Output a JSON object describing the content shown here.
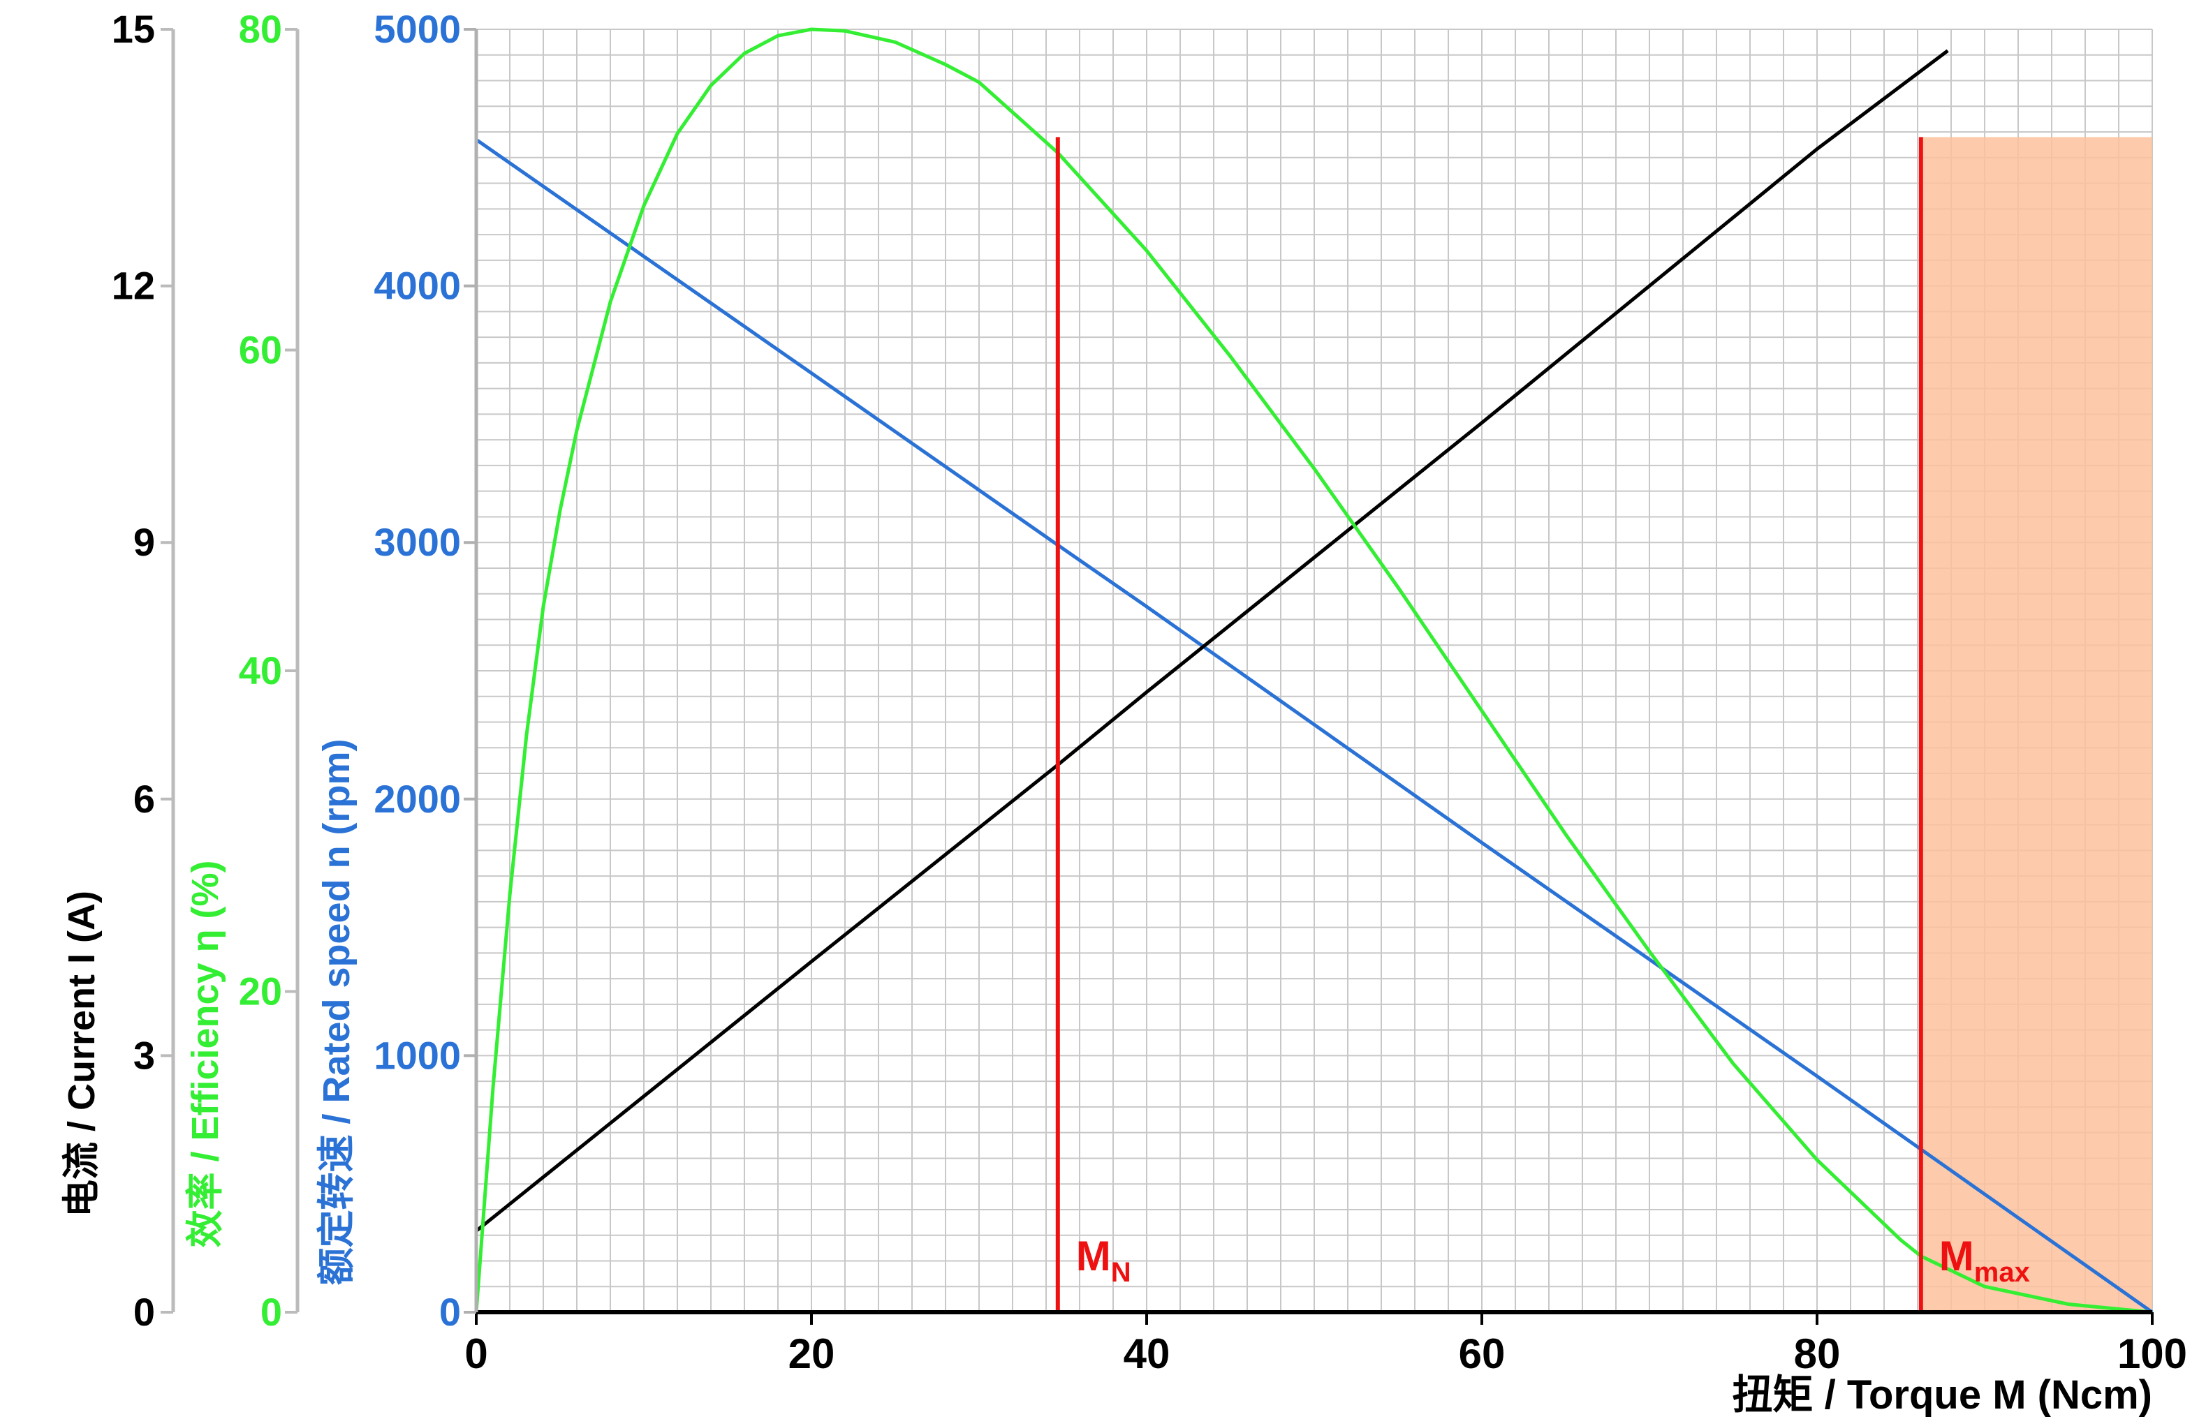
{
  "chart_data": {
    "type": "line",
    "x_axis": {
      "label": "扭矩 / Torque M (Ncm)",
      "range": [
        0,
        100
      ],
      "ticks": [
        0,
        20,
        40,
        60,
        80,
        100
      ],
      "tick_labels": [
        "0",
        "20",
        "40",
        "60",
        "80",
        "100"
      ],
      "color": "#000000"
    },
    "y_axes": [
      {
        "id": "current",
        "label": "电流 / Current I (A)",
        "range": [
          0,
          15
        ],
        "ticks": [
          0,
          3,
          6,
          9,
          12,
          15
        ],
        "tick_labels": [
          "0",
          "3",
          "6",
          "9",
          "12",
          "15"
        ],
        "color": "#000000"
      },
      {
        "id": "efficiency",
        "label": "效率 / Efficiency η  (%)",
        "range": [
          0,
          80
        ],
        "ticks": [
          0,
          20,
          40,
          60,
          80
        ],
        "tick_labels": [
          "0",
          "20",
          "40",
          "60",
          "80"
        ],
        "color": "#33ee33"
      },
      {
        "id": "speed",
        "label": "额定转速 / Rated speed n (rpm)",
        "range": [
          0,
          5000
        ],
        "ticks": [
          0,
          1000,
          2000,
          3000,
          4000,
          5000
        ],
        "tick_labels": [
          "0",
          "1000",
          "2000",
          "3000",
          "4000",
          "5000"
        ],
        "color": "#2a72d5"
      }
    ],
    "series": [
      {
        "axis": "speed",
        "color": "#2a72d5",
        "x": [
          0,
          20,
          34.7,
          40,
          60,
          80,
          86.2,
          100
        ],
        "y": [
          4570,
          3660,
          2990,
          2750,
          1830,
          920,
          635,
          0
        ]
      },
      {
        "axis": "current",
        "color": "#000000",
        "x": [
          0,
          20,
          34.7,
          40,
          60,
          80,
          87.8
        ],
        "y": [
          0.95,
          4.1,
          6.4,
          7.25,
          10.4,
          13.6,
          14.75
        ]
      },
      {
        "axis": "efficiency",
        "color": "#33ee33",
        "x": [
          0,
          1,
          2,
          3,
          4,
          5,
          6,
          8,
          10,
          12,
          14,
          16,
          18,
          20,
          22,
          25,
          28,
          30,
          34.7,
          40,
          45,
          50,
          55,
          60,
          65,
          70,
          75,
          80,
          85,
          86.2,
          90,
          95,
          100
        ],
        "y": [
          0,
          14,
          26,
          36,
          44,
          50,
          55,
          63,
          69,
          73.5,
          76.5,
          78.5,
          79.6,
          80,
          79.9,
          79.2,
          77.8,
          76.7,
          72.3,
          66.2,
          59.6,
          52.6,
          45.2,
          37.5,
          29.8,
          22.5,
          15.5,
          9.5,
          4.5,
          3.5,
          1.6,
          0.5,
          0
        ]
      }
    ],
    "reference_lines": [
      {
        "x": 34.7,
        "y_top": 4580,
        "label": "M",
        "sub": "N",
        "color": "#ee1111"
      },
      {
        "x": 86.2,
        "y_top": 4580,
        "label": "M",
        "sub": "max",
        "color": "#ee1111"
      }
    ],
    "shaded_region": {
      "x": [
        86.2,
        100
      ],
      "y_top": 4580,
      "color": "#fdc29c"
    },
    "grid": true,
    "grid_color": "#c8c8c8"
  }
}
